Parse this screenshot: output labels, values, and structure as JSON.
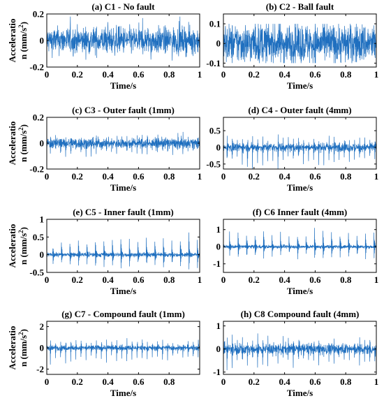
{
  "figure": {
    "ylabel_lines": [
      "Acceleratio",
      "n (mm/s",
      "2",
      ")"
    ],
    "xlabel": "Time/s",
    "line_color": "#1f6fbf"
  },
  "chart_data": [
    {
      "type": "line",
      "title": "(a) C1 - No fault",
      "xlabel": "Time/s",
      "ylabel": "Acceleration (mm/s²)",
      "xlim": [
        0,
        1
      ],
      "ylim": [
        -0.2,
        0.2
      ],
      "xticks": [
        "0",
        "0.2",
        "0.4",
        "0.6",
        "0.8",
        "1"
      ],
      "yticks": [
        {
          "v": 0.2,
          "label": "0.2"
        },
        {
          "v": 0,
          "label": "0"
        },
        {
          "v": -0.2,
          "label": "-0.2"
        }
      ],
      "signal": {
        "noise": 0.05,
        "impulse_period": 0,
        "impulse_amp": 0,
        "max_amp": 0.18
      }
    },
    {
      "type": "line",
      "title": "(b) C2 - Ball fault",
      "xlabel": "Time/s",
      "ylabel": "",
      "xlim": [
        0,
        1
      ],
      "ylim": [
        -0.12,
        0.15
      ],
      "xticks": [
        "0",
        "0.2",
        "0.4",
        "0.6",
        "0.8",
        "1"
      ],
      "yticks": [
        {
          "v": 0.1,
          "label": "0.1"
        },
        {
          "v": 0,
          "label": "0"
        },
        {
          "v": -0.1,
          "label": "-0.1"
        }
      ],
      "signal": {
        "noise": 0.05,
        "impulse_period": 0,
        "impulse_amp": 0,
        "max_amp": 0.1
      }
    },
    {
      "type": "line",
      "title": "(c) C3 - Outer fault (1mm)",
      "xlabel": "Time/s",
      "ylabel": "Acceleration (mm/s²)",
      "xlim": [
        0,
        1
      ],
      "ylim": [
        -0.2,
        0.2
      ],
      "xticks": [
        "0",
        "0.2",
        "0.4",
        "0.6",
        "0.8",
        "1"
      ],
      "yticks": [
        {
          "v": 0.2,
          "label": "0.2"
        },
        {
          "v": 0,
          "label": "0"
        },
        {
          "v": -0.2,
          "label": "-0.2"
        }
      ],
      "signal": {
        "noise": 0.02,
        "impulse_period": 0.0333,
        "impulse_amp": 0.11,
        "max_amp": 0.15
      }
    },
    {
      "type": "line",
      "title": "(d) C4 - Outer fault (4mm)",
      "xlabel": "Time/s",
      "ylabel": "",
      "xlim": [
        0,
        1
      ],
      "ylim": [
        -0.65,
        0.9
      ],
      "xticks": [
        "0",
        "0.2",
        "0.4",
        "0.6",
        "0.8",
        "1"
      ],
      "yticks": [
        {
          "v": 0.5,
          "label": "0.5"
        },
        {
          "v": 0,
          "label": "0"
        },
        {
          "v": -0.5,
          "label": "-0.5"
        }
      ],
      "signal": {
        "noise": 0.06,
        "impulse_period": 0.0333,
        "impulse_amp": 0.65,
        "max_amp": 0.72
      }
    },
    {
      "type": "line",
      "title": "(e) C5 - Inner fault (1mm)",
      "xlabel": "Time/s",
      "ylabel": "Acceleration (mm/s²)",
      "xlim": [
        0,
        1
      ],
      "ylim": [
        -0.5,
        1
      ],
      "xticks": [
        "0",
        "0.2",
        "0.4",
        "0.6",
        "0.8",
        "1"
      ],
      "yticks": [
        {
          "v": 1,
          "label": "1"
        },
        {
          "v": 0.5,
          "label": "0.5"
        },
        {
          "v": 0,
          "label": "0"
        },
        {
          "v": -0.5,
          "label": "-0.5"
        }
      ],
      "signal": {
        "noise": 0.03,
        "impulse_period": 0.0556,
        "impulse_amp": 0.6,
        "max_amp": 0.85
      }
    },
    {
      "type": "line",
      "title": "(f) C6 Inner fault (4mm)",
      "xlabel": "Time/s",
      "ylabel": "",
      "xlim": [
        0,
        1
      ],
      "ylim": [
        -1.5,
        1.6
      ],
      "xticks": [
        "0",
        "0.2",
        "0.4",
        "0.6",
        "0.8",
        "1"
      ],
      "yticks": [
        {
          "v": 1,
          "label": "1"
        },
        {
          "v": 0,
          "label": "0"
        },
        {
          "v": -1,
          "label": "-1"
        }
      ],
      "signal": {
        "noise": 0.05,
        "impulse_period": 0.0556,
        "impulse_amp": 1.1,
        "max_amp": 1.4
      }
    },
    {
      "type": "line",
      "title": "(g) C7 - Compound fault (1mm)",
      "xlabel": "Time/s",
      "ylabel": "Acceleration (mm/s²)",
      "xlim": [
        0,
        1
      ],
      "ylim": [
        -2.5,
        2.5
      ],
      "xticks": [
        "0",
        "0.2",
        "0.4",
        "0.6",
        "0.8"
      ],
      "yticks": [
        {
          "v": 2,
          "label": "2"
        },
        {
          "v": 0,
          "label": "0"
        },
        {
          "v": -2,
          "label": "-2"
        }
      ],
      "signal": {
        "noise": 0.12,
        "impulse_period": 0.0333,
        "impulse_amp": 1.7,
        "max_amp": 2.2
      }
    },
    {
      "type": "line",
      "title": "(h) C8 Compound fault (4mm)",
      "xlabel": "Time/s",
      "ylabel": "",
      "xlim": [
        0,
        1
      ],
      "ylim": [
        -1.1,
        1.2
      ],
      "xticks": [
        "0",
        "0.2",
        "0.4",
        "0.6",
        "0.8",
        "1"
      ],
      "yticks": [
        {
          "v": 1,
          "label": "1"
        },
        {
          "v": 0,
          "label": "0"
        },
        {
          "v": -1,
          "label": "-1"
        }
      ],
      "signal": {
        "noise": 0.12,
        "impulse_period": 0.0333,
        "impulse_amp": 0.8,
        "max_amp": 1.05
      }
    }
  ]
}
